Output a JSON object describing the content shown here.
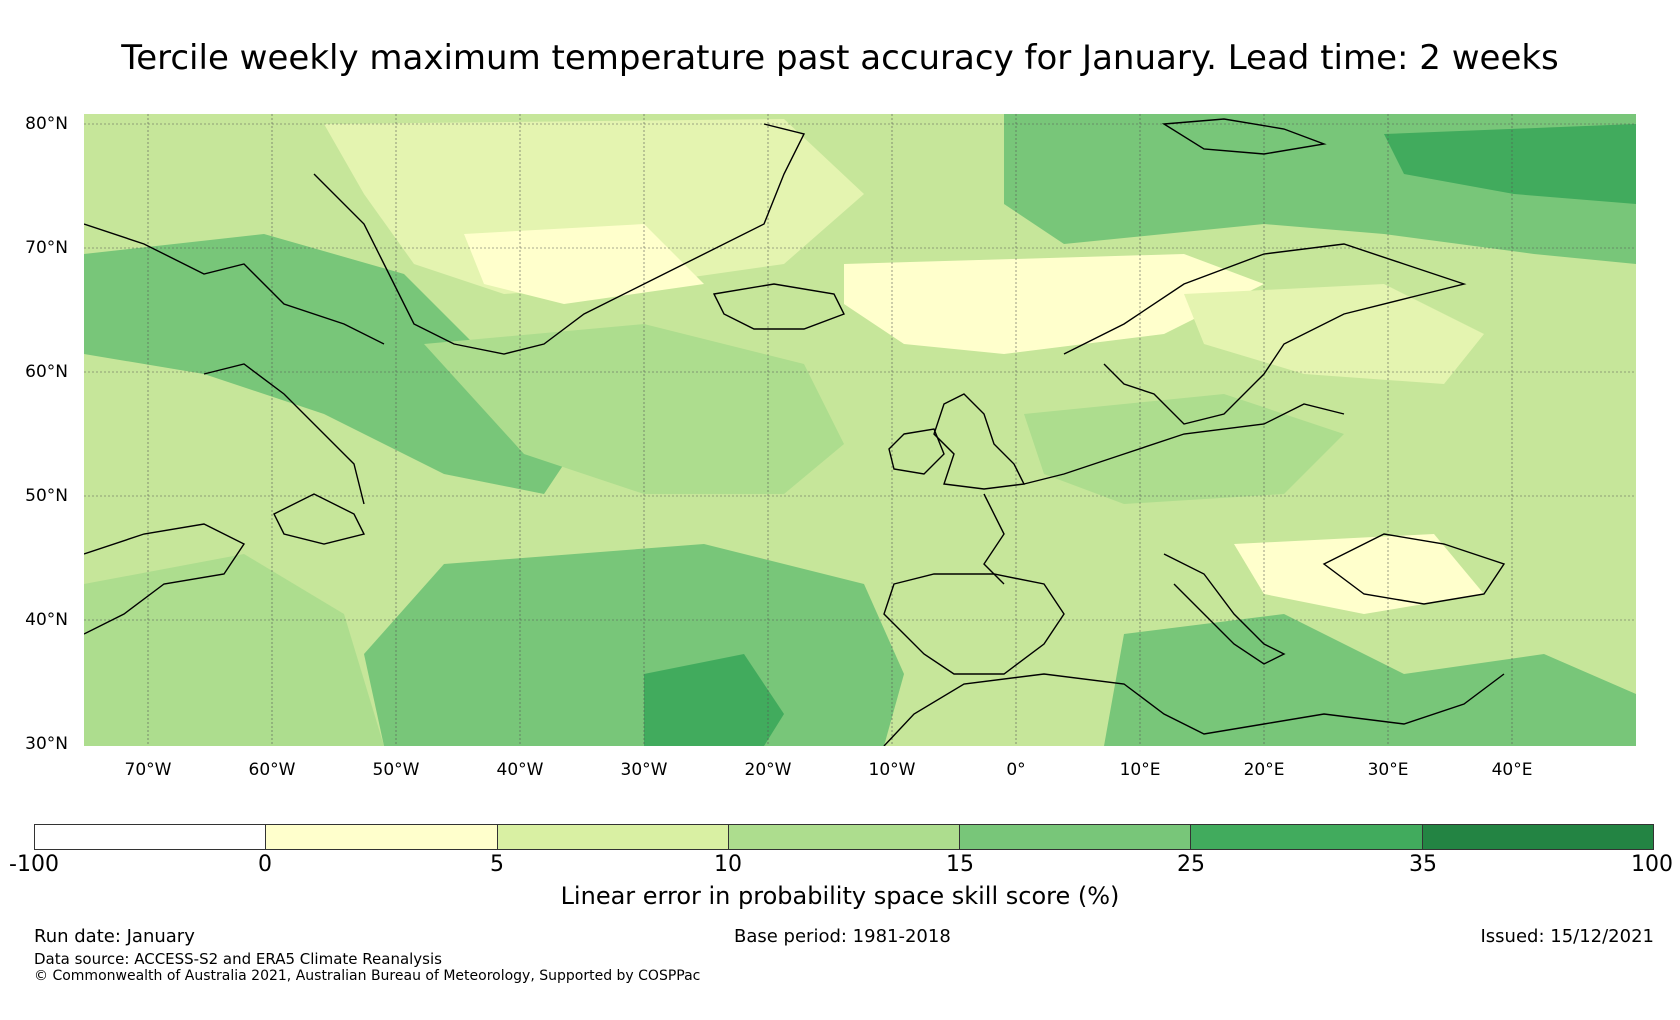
{
  "title": "Tercile weekly maximum temperature past accuracy for January. Lead time: 2 weeks",
  "map": {
    "lat_labels": [
      "80°N",
      "70°N",
      "60°N",
      "50°N",
      "40°N",
      "30°N"
    ],
    "lon_labels": [
      "70°W",
      "60°W",
      "50°W",
      "40°W",
      "30°W",
      "20°W",
      "10°W",
      "0°",
      "10°E",
      "20°E",
      "30°E",
      "40°E"
    ]
  },
  "colorbar": {
    "ticks": [
      "-100",
      "0",
      "5",
      "10",
      "15",
      "25",
      "35",
      "100"
    ],
    "colors": [
      "#ffffff",
      "#ffffcc",
      "#d9f0a3",
      "#addd8e",
      "#78c679",
      "#41ab5d",
      "#238443"
    ],
    "label": "Linear error in probability space skill score (%)"
  },
  "footer": {
    "run_date": "Run date: January",
    "base_period": "Base period: 1981-2018",
    "issued": "Issued: 15/12/2021",
    "data_source": "Data source: ACCESS-S2 and ERA5 Climate Reanalysis",
    "copyright": "© Commonwealth of Australia 2021, Australian Bureau of Meteorology, Supported by COSPPac"
  }
}
